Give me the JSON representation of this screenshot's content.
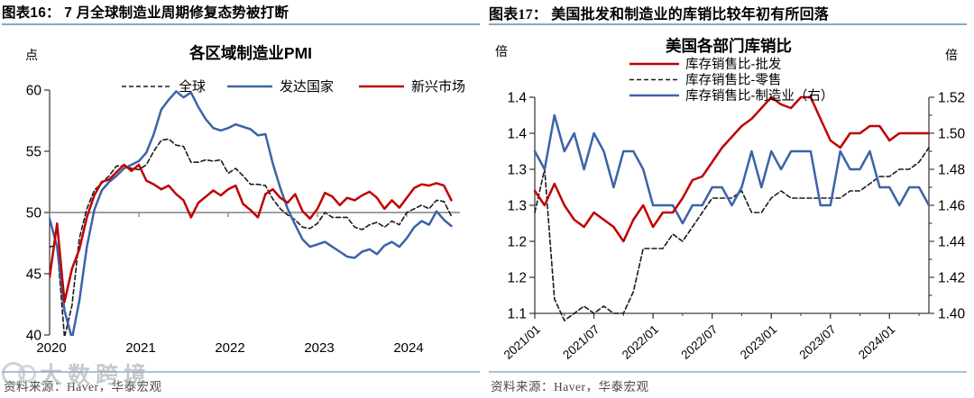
{
  "panels": {
    "left": {
      "header": "图表16：  7 月全球制造业周期修复态势被打断",
      "source": "资料来源：Haver，华泰宏观",
      "watermark": "大数跨境"
    },
    "right": {
      "header": "图表17：  美国批发和制造业的库销比较年初有所回落",
      "source": "资料来源：Haver，华泰宏观"
    }
  },
  "colors": {
    "blue_line": "#3c63a8",
    "red_line": "#c00000",
    "dashed_line": "#1a1a1a",
    "axis": "#404040",
    "cross_line": "#808080",
    "header_rule": "#87a6c6",
    "source_text": "#4a4a45",
    "watermark": "#9aa0a6"
  },
  "chart_data": [
    {
      "type": "line",
      "title": "各区域制造业PMI",
      "unit_label": "点",
      "ylim": [
        40,
        60
      ],
      "yticks": [
        60,
        55,
        50,
        45,
        40
      ],
      "axis_cross_value": 50,
      "x_start": "2020-01",
      "x_tick_labels": [
        "2020",
        "2021",
        "2022",
        "2023",
        "2024"
      ],
      "x_tick_month_index": [
        0,
        12,
        24,
        36,
        48
      ],
      "legend_position": "top-horizontal",
      "series": [
        {
          "name": "全球",
          "style": "dashed",
          "axis": "left",
          "color": "#1a1a1a",
          "values": [
            47.2,
            47.3,
            39.8,
            42.4,
            47.9,
            50.3,
            51.8,
            52.4,
            53.0,
            53.8,
            53.8,
            53.6,
            53.5,
            53.9,
            55.0,
            55.9,
            56.0,
            55.5,
            55.4,
            54.1,
            54.1,
            54.3,
            54.2,
            54.3,
            53.2,
            53.6,
            53.0,
            52.3,
            52.3,
            52.2,
            51.1,
            50.3,
            49.8,
            49.4,
            48.8,
            48.7,
            49.1,
            50.0,
            49.6,
            49.6,
            49.6,
            48.8,
            48.6,
            49.0,
            49.2,
            48.8,
            49.3,
            49.0,
            50.0,
            50.3,
            50.6,
            50.3,
            51.0,
            50.9,
            49.7
          ]
        },
        {
          "name": "发达国家",
          "style": "solid",
          "axis": "left",
          "color": "#3c63a8",
          "values": [
            49.5,
            47.2,
            42.0,
            39.7,
            42.8,
            47.2,
            50.2,
            51.8,
            52.5,
            53.0,
            53.6,
            53.9,
            54.2,
            54.9,
            56.4,
            58.4,
            59.2,
            59.9,
            59.4,
            59.8,
            58.6,
            57.6,
            56.9,
            56.7,
            56.9,
            57.2,
            57.0,
            56.8,
            56.3,
            56.4,
            54.0,
            52.0,
            50.3,
            49.0,
            47.8,
            47.2,
            47.4,
            47.6,
            47.2,
            46.8,
            46.4,
            46.3,
            46.8,
            47.0,
            46.6,
            47.3,
            47.6,
            47.2,
            47.9,
            48.8,
            49.3,
            49.0,
            50.1,
            49.4,
            48.9
          ]
        },
        {
          "name": "新兴市场",
          "style": "solid",
          "axis": "left",
          "color": "#c00000",
          "values": [
            44.7,
            49.1,
            42.7,
            45.4,
            47.0,
            49.6,
            51.4,
            52.5,
            52.7,
            53.3,
            53.9,
            53.4,
            53.9,
            52.6,
            52.3,
            51.9,
            52.2,
            51.5,
            51.0,
            49.6,
            50.8,
            51.3,
            51.8,
            51.4,
            51.9,
            52.2,
            50.7,
            50.2,
            49.6,
            51.5,
            51.9,
            51.2,
            50.8,
            51.5,
            50.1,
            49.5,
            50.3,
            51.6,
            51.3,
            50.6,
            51.2,
            51.0,
            51.4,
            51.7,
            51.2,
            50.3,
            51.0,
            50.4,
            51.2,
            52.0,
            52.3,
            52.2,
            52.4,
            52.2,
            51.0
          ]
        }
      ]
    },
    {
      "type": "line",
      "title": "美国各部门库销比",
      "unit_label_left": "倍",
      "unit_label_right": "倍",
      "ylim_left": [
        1.1,
        1.4
      ],
      "ytick_values_left": [
        1.4,
        1.35,
        1.3,
        1.25,
        1.2,
        1.15,
        1.1
      ],
      "ytick_labels_left": [
        "1.4",
        "1.4",
        "1.3",
        "1.3",
        "1.2",
        "1.2",
        "1.1"
      ],
      "ylim_right": [
        1.4,
        1.52
      ],
      "ytick_values_right": [
        1.52,
        1.5,
        1.48,
        1.46,
        1.44,
        1.42,
        1.4
      ],
      "ytick_labels_right": [
        "1.52",
        "1.50",
        "1.48",
        "1.46",
        "1.44",
        "1.42",
        "1.40"
      ],
      "x_start": "2021-01",
      "x_tick_labels": [
        "2021/01",
        "2021/07",
        "2022/01",
        "2022/07",
        "2023/01",
        "2023/07",
        "2024/01"
      ],
      "x_tick_month_index": [
        0,
        6,
        12,
        18,
        24,
        30,
        36
      ],
      "legend_position": "top-vertical",
      "series": [
        {
          "name": "库存销售比-批发",
          "style": "solid",
          "axis": "left",
          "color": "#c00000",
          "values": [
            1.27,
            1.25,
            1.28,
            1.25,
            1.23,
            1.22,
            1.24,
            1.23,
            1.22,
            1.2,
            1.23,
            1.25,
            1.22,
            1.24,
            1.24,
            1.26,
            1.285,
            1.29,
            1.31,
            1.33,
            1.345,
            1.36,
            1.37,
            1.385,
            1.4,
            1.39,
            1.385,
            1.4,
            1.4,
            1.37,
            1.34,
            1.33,
            1.35,
            1.35,
            1.36,
            1.36,
            1.34,
            1.35,
            1.35,
            1.35,
            1.35
          ]
        },
        {
          "name": "库存销售比-零售",
          "style": "dashed",
          "axis": "left",
          "color": "#1a1a1a",
          "values": [
            1.24,
            1.3,
            1.12,
            1.09,
            1.1,
            1.11,
            1.1,
            1.11,
            1.1,
            1.1,
            1.13,
            1.19,
            1.19,
            1.19,
            1.21,
            1.2,
            1.22,
            1.24,
            1.26,
            1.26,
            1.26,
            1.27,
            1.24,
            1.24,
            1.26,
            1.27,
            1.26,
            1.26,
            1.26,
            1.26,
            1.26,
            1.26,
            1.27,
            1.27,
            1.28,
            1.29,
            1.29,
            1.3,
            1.3,
            1.31,
            1.33
          ]
        },
        {
          "name": "库存销售比-制造业（右）",
          "style": "solid",
          "axis": "right",
          "color": "#3c63a8",
          "values": [
            1.49,
            1.48,
            1.51,
            1.49,
            1.5,
            1.48,
            1.5,
            1.49,
            1.47,
            1.49,
            1.49,
            1.48,
            1.46,
            1.46,
            1.46,
            1.45,
            1.46,
            1.46,
            1.47,
            1.47,
            1.46,
            1.47,
            1.49,
            1.47,
            1.49,
            1.48,
            1.49,
            1.49,
            1.49,
            1.46,
            1.46,
            1.49,
            1.48,
            1.48,
            1.49,
            1.47,
            1.47,
            1.46,
            1.47,
            1.47,
            1.46
          ]
        }
      ]
    }
  ]
}
